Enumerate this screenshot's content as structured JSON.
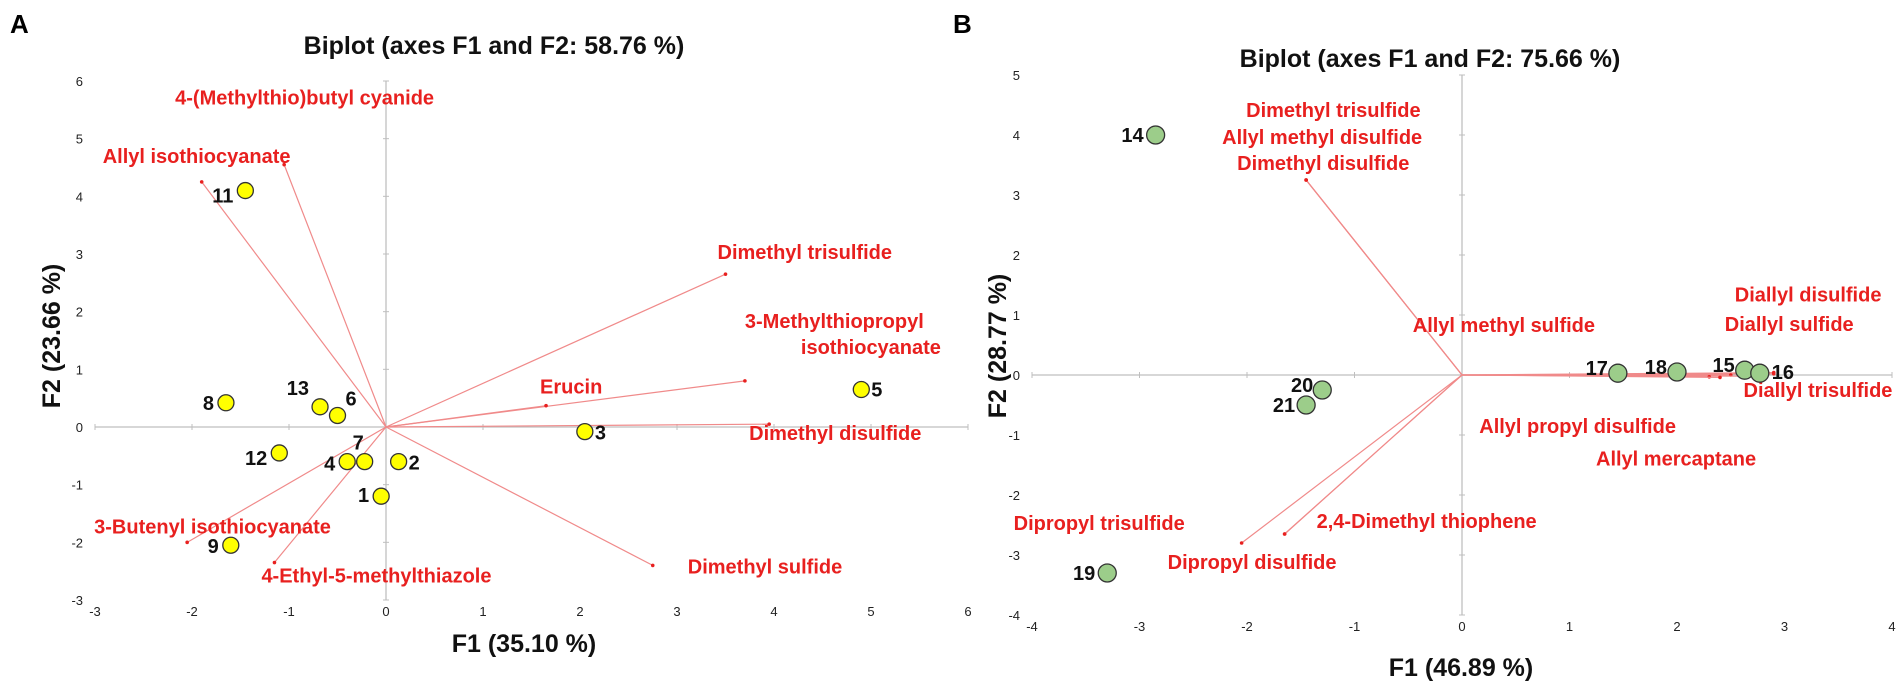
{
  "figure": {
    "panels": [
      "A",
      "B"
    ]
  },
  "colors": {
    "vector": "#f08a8a",
    "variable_label": "#e8201f",
    "axis": "#bfbfbf",
    "panel_a_point_fill": "#ffff00",
    "panel_b_point_fill": "#9ccd8a",
    "point_stroke": "#333333"
  },
  "chart_data": [
    {
      "type": "scatter",
      "subtype": "biplot",
      "panel": "A",
      "title": "Biplot (axes F1 and F2: 58.76 %)",
      "xlabel": "F1 (35.10 %)",
      "ylabel": "F2 (23.66 %)",
      "xlim": [
        -3,
        6
      ],
      "ylim": [
        -3,
        6
      ],
      "xticks": [
        -3,
        -2,
        -1,
        0,
        1,
        2,
        3,
        4,
        5,
        6
      ],
      "yticks": [
        -3,
        -2,
        -1,
        0,
        1,
        2,
        3,
        4,
        5,
        6
      ],
      "grid": false,
      "observations": [
        {
          "label": "1",
          "x": -0.05,
          "y": -1.2
        },
        {
          "label": "2",
          "x": 0.13,
          "y": -0.6
        },
        {
          "label": "3",
          "x": 2.05,
          "y": -0.08
        },
        {
          "label": "4",
          "x": -0.4,
          "y": -0.6
        },
        {
          "label": "5",
          "x": 4.9,
          "y": 0.65
        },
        {
          "label": "6",
          "x": -0.5,
          "y": 0.2
        },
        {
          "label": "7",
          "x": -0.22,
          "y": -0.6
        },
        {
          "label": "8",
          "x": -1.65,
          "y": 0.42
        },
        {
          "label": "9",
          "x": -1.6,
          "y": -2.05
        },
        {
          "label": "11",
          "x": -1.45,
          "y": 4.1
        },
        {
          "label": "12",
          "x": -1.1,
          "y": -0.45
        },
        {
          "label": "13",
          "x": -0.68,
          "y": 0.35
        }
      ],
      "variables": [
        {
          "label": "Allyl isothiocyanate",
          "x": -1.9,
          "y": 4.25
        },
        {
          "label": "4-(Methylthio)butyl cyanide",
          "x": -1.05,
          "y": 4.55
        },
        {
          "label": "Dimethyl trisulfide",
          "x": 3.5,
          "y": 2.65
        },
        {
          "label": "3-Methylthiopropyl isothiocyanate",
          "x": 3.7,
          "y": 0.8
        },
        {
          "label": "Erucin",
          "x": 1.65,
          "y": 0.37
        },
        {
          "label": "Dimethyl disulfide",
          "x": 3.95,
          "y": 0.05
        },
        {
          "label": "Dimethyl sulfide",
          "x": 2.75,
          "y": -2.4
        },
        {
          "label": "3-Butenyl isothiocyanate",
          "x": -2.05,
          "y": -2.0
        },
        {
          "label": "4-Ethyl-5-methylthiazole",
          "x": -1.15,
          "y": -2.35
        }
      ]
    },
    {
      "type": "scatter",
      "subtype": "biplot",
      "panel": "B",
      "title": "Biplot (axes F1 and F2: 75.66 %)",
      "xlabel": "F1 (46.89 %)",
      "ylabel": "F2 (28.77 %)",
      "xlim": [
        -4,
        4
      ],
      "ylim": [
        -4,
        5
      ],
      "xticks": [
        -4,
        -3,
        -2,
        -1,
        0,
        1,
        2,
        3,
        4
      ],
      "yticks": [
        -4,
        -3,
        -2,
        -1,
        0,
        1,
        2,
        3,
        4,
        5
      ],
      "grid": false,
      "observations": [
        {
          "label": "14",
          "x": -2.85,
          "y": 4.0
        },
        {
          "label": "15",
          "x": 2.63,
          "y": 0.08
        },
        {
          "label": "16",
          "x": 2.77,
          "y": 0.03
        },
        {
          "label": "17",
          "x": 1.45,
          "y": 0.03
        },
        {
          "label": "18",
          "x": 2.0,
          "y": 0.05
        },
        {
          "label": "19",
          "x": -3.3,
          "y": -3.3
        },
        {
          "label": "20",
          "x": -1.3,
          "y": -0.25
        },
        {
          "label": "21",
          "x": -1.45,
          "y": -0.5
        }
      ],
      "variables": [
        {
          "label": "Dimethyl trisulfide",
          "x": -1.45,
          "y": 3.25
        },
        {
          "label": "Allyl methyl disulfide",
          "x": -1.45,
          "y": 3.25
        },
        {
          "label": "Dimethyl disulfide",
          "x": -1.45,
          "y": 3.25
        },
        {
          "label": "Diallyl disulfide",
          "x": 2.9,
          "y": 0.04
        },
        {
          "label": "Diallyl sulfide",
          "x": 2.9,
          "y": 0.02
        },
        {
          "label": "Allyl methyl sulfide",
          "x": 2.5,
          "y": 0.0
        },
        {
          "label": "Diallyl trisulfide",
          "x": 2.6,
          "y": -0.02
        },
        {
          "label": "Allyl propyl disulfide",
          "x": 2.3,
          "y": -0.03
        },
        {
          "label": "Allyl mercaptane",
          "x": 2.4,
          "y": -0.04
        },
        {
          "label": "Dipropyl trisulfide",
          "x": -2.05,
          "y": -2.8
        },
        {
          "label": "Dipropyl disulfide",
          "x": -1.65,
          "y": -2.65
        },
        {
          "label": "2,4-Dimethyl thiophene",
          "x": -1.65,
          "y": -2.65
        }
      ]
    }
  ]
}
